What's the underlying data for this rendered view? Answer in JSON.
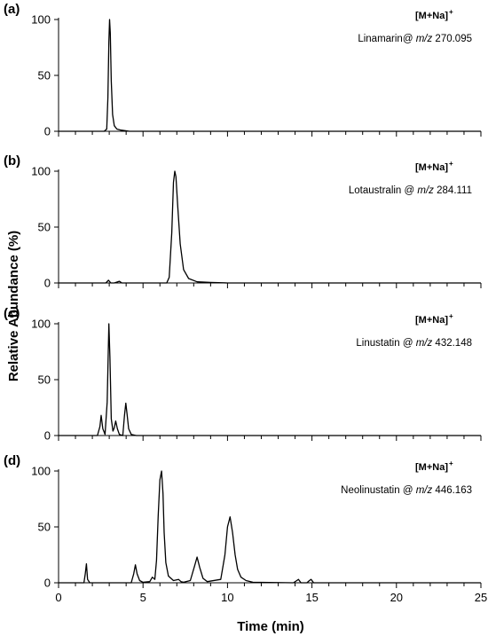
{
  "chart_data": {
    "type": "line",
    "ylabel": "Relative Abundance (%)",
    "xlabel": "Time (min)",
    "xlim": [
      0,
      25
    ],
    "ylim": [
      0,
      100
    ],
    "x_ticks": [
      "0",
      "5",
      "10",
      "15",
      "20",
      "25"
    ],
    "y_ticks": [
      "0",
      "50",
      "100"
    ],
    "grid": false,
    "panels": [
      {
        "label": "(a)",
        "adduct": "[M+Na]",
        "adduct_sup": "+",
        "compound_prefix": "Linamarin@ ",
        "mz_italic": "m/z",
        "mz_value": " 270.095",
        "x": [
          0,
          2.7,
          2.85,
          2.92,
          2.98,
          3.02,
          3.06,
          3.12,
          3.2,
          3.3,
          3.45,
          3.7,
          4.2,
          25
        ],
        "y": [
          0,
          0,
          2,
          30,
          80,
          100,
          88,
          45,
          15,
          5,
          2,
          1,
          0,
          0
        ]
      },
      {
        "label": "(b)",
        "adduct": "[M+Na]",
        "adduct_sup": "+",
        "compound_prefix": "Lotaustralin @ ",
        "mz_italic": "m/z",
        "mz_value": " 284.111",
        "x": [
          0,
          2.8,
          2.95,
          3.1,
          3.3,
          3.6,
          3.75,
          3.9,
          6.4,
          6.55,
          6.7,
          6.8,
          6.88,
          6.95,
          7.05,
          7.2,
          7.4,
          7.7,
          8.2,
          9,
          10,
          25
        ],
        "y": [
          0,
          0,
          2.5,
          0,
          0,
          1.5,
          0,
          0,
          0,
          5,
          45,
          90,
          100,
          95,
          70,
          35,
          12,
          4,
          1,
          0.5,
          0,
          0
        ]
      },
      {
        "label": "(c)",
        "adduct": "[M+Na]",
        "adduct_sup": "+",
        "compound_prefix": "Linustatin @ ",
        "mz_italic": "m/z",
        "mz_value": " 432.148",
        "x": [
          0,
          2.3,
          2.45,
          2.52,
          2.62,
          2.75,
          2.88,
          2.98,
          3.04,
          3.12,
          3.22,
          3.3,
          3.38,
          3.48,
          3.6,
          3.8,
          3.9,
          3.98,
          4.05,
          4.15,
          4.3,
          4.6,
          25
        ],
        "y": [
          0,
          0,
          8,
          18,
          6,
          1,
          30,
          100,
          70,
          15,
          4,
          7,
          13,
          6,
          1,
          0,
          18,
          29,
          20,
          6,
          1,
          0,
          0
        ]
      },
      {
        "label": "(d)",
        "adduct": "[M+Na]",
        "adduct_sup": "+",
        "compound_prefix": "Neolinustatin @ ",
        "mz_italic": "m/z",
        "mz_value": " 446.163",
        "x": [
          0,
          1.5,
          1.58,
          1.65,
          1.72,
          1.85,
          4.3,
          4.45,
          4.55,
          4.65,
          4.8,
          5.0,
          5.4,
          5.55,
          5.7,
          5.8,
          5.9,
          6.0,
          6.1,
          6.18,
          6.25,
          6.35,
          6.5,
          6.8,
          7.1,
          7.25,
          7.4,
          7.8,
          8.05,
          8.2,
          8.35,
          8.55,
          8.8,
          9.6,
          9.85,
          10.0,
          10.15,
          10.3,
          10.45,
          10.6,
          10.8,
          11.1,
          11.5,
          13.9,
          14.1,
          14.2,
          14.35,
          14.7,
          14.85,
          14.95,
          15.1,
          25
        ],
        "y": [
          0,
          0,
          8,
          17,
          3,
          0,
          0,
          8,
          16,
          8,
          2,
          0.5,
          1,
          5,
          3,
          20,
          60,
          92,
          100,
          80,
          45,
          18,
          6,
          2,
          3,
          1,
          0.5,
          2,
          15,
          23,
          14,
          4,
          1,
          3,
          25,
          50,
          59,
          45,
          25,
          12,
          5,
          2,
          0.5,
          0,
          2,
          3,
          0,
          0,
          2,
          3,
          0,
          0
        ]
      }
    ]
  }
}
